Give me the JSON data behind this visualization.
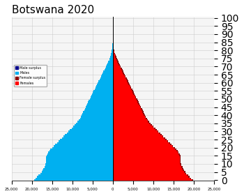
{
  "title": "Botswana 2020",
  "title_fontsize": 11,
  "title_fontweight": "normal",
  "xlim": 25000,
  "ylim_max": 100,
  "background_color": "#ffffff",
  "plot_bg_color": "#f5f5f5",
  "male_color": "#00b0f0",
  "male_surplus_color": "#00008b",
  "female_color": "#ff0000",
  "female_surplus_color": "#8b0000",
  "legend_labels": [
    "Male surplus",
    "Males",
    "Female surplus",
    "Females"
  ],
  "legend_colors": [
    "#00008b",
    "#00b0f0",
    "#8b0000",
    "#ff0000"
  ],
  "male_pop": [
    19500,
    19100,
    18700,
    18300,
    17900,
    17600,
    17300,
    17100,
    16900,
    16700,
    16600,
    16500,
    16500,
    16500,
    16500,
    16400,
    16200,
    16000,
    15700,
    15400,
    15000,
    14600,
    14200,
    13800,
    13400,
    13000,
    12600,
    12200,
    11800,
    11400,
    11000,
    10600,
    10200,
    9800,
    9400,
    9000,
    8700,
    8400,
    8100,
    7900,
    7700,
    7500,
    7300,
    7100,
    6900,
    6700,
    6500,
    6300,
    6100,
    5900,
    5700,
    5500,
    5300,
    5100,
    4900,
    4700,
    4500,
    4300,
    4100,
    3900,
    3700,
    3500,
    3300,
    3100,
    2900,
    2700,
    2500,
    2300,
    2100,
    1900,
    1700,
    1500,
    1300,
    1100,
    900,
    750,
    620,
    500,
    390,
    300,
    220,
    160,
    110,
    75,
    50,
    33,
    21,
    13,
    8,
    5,
    3,
    2,
    1,
    1,
    0,
    0,
    0,
    0,
    0,
    0,
    0
  ],
  "female_pop": [
    19800,
    19400,
    19000,
    18600,
    18200,
    17900,
    17600,
    17400,
    17200,
    17000,
    16900,
    16800,
    16800,
    16800,
    16800,
    16700,
    16500,
    16300,
    16000,
    15700,
    15300,
    14900,
    14500,
    14100,
    13700,
    13300,
    12900,
    12500,
    12100,
    11700,
    11300,
    10900,
    10500,
    10100,
    9700,
    9300,
    9000,
    8700,
    8400,
    8200,
    8000,
    7800,
    7600,
    7400,
    7200,
    7000,
    6800,
    6600,
    6400,
    6200,
    6000,
    5800,
    5600,
    5400,
    5200,
    5000,
    4800,
    4600,
    4400,
    4200,
    4000,
    3800,
    3600,
    3400,
    3200,
    3000,
    2800,
    2600,
    2400,
    2200,
    2000,
    1800,
    1600,
    1400,
    1200,
    1050,
    900,
    750,
    600,
    470,
    360,
    270,
    195,
    135,
    90,
    58,
    36,
    22,
    13,
    8,
    5,
    3,
    2,
    1,
    1,
    0,
    0,
    0,
    0,
    0,
    0
  ],
  "xticks": [
    -25000,
    -20000,
    -15000,
    -10000,
    -5000,
    0,
    5000,
    10000,
    15000,
    20000,
    25000
  ],
  "xticklabels": [
    "25,000",
    "20,000",
    "15,000",
    "10,000",
    "5,000",
    "0",
    "5,000",
    "10,000",
    "15,000",
    "20,000",
    "25,000"
  ],
  "ytick_interval": 5,
  "grid_color": "#cccccc"
}
